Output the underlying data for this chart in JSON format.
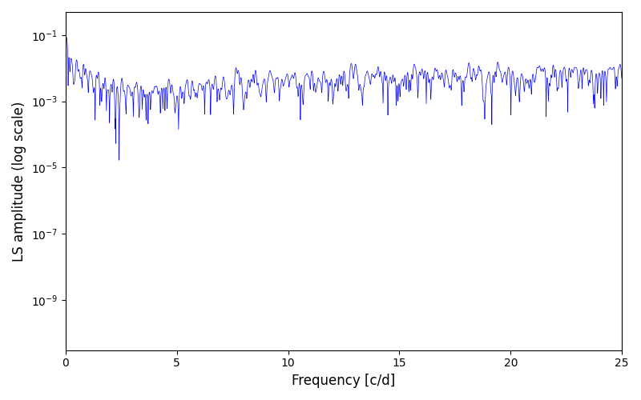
{
  "xlabel": "Frequency [c/d]",
  "ylabel": "LS amplitude (log scale)",
  "xlim": [
    0,
    25
  ],
  "ylim": [
    3e-11,
    0.5
  ],
  "line_color": "blue",
  "line_width": 0.5,
  "background_color": "#ffffff",
  "seed": 12345,
  "n_points": 5000,
  "freq_max": 25.0
}
